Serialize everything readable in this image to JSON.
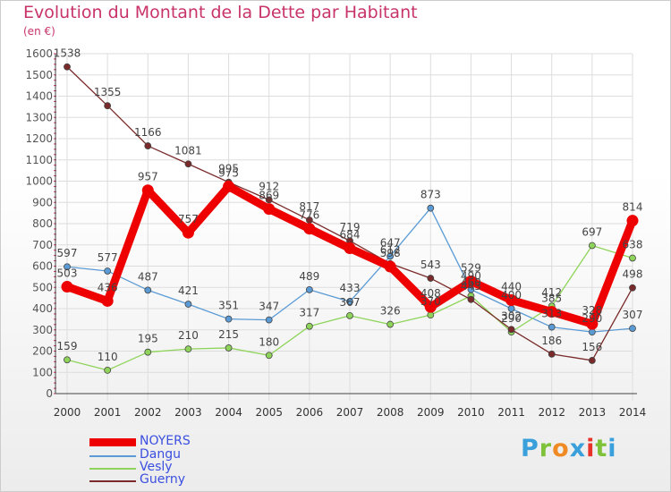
{
  "title": "Evolution du Montant de la Dette par Habitant",
  "unit": "(en €)",
  "logo": {
    "text": "Proxiti",
    "letter_colors": [
      "#3aa0dc",
      "#7ec23a",
      "#f08a24",
      "#3aa0dc",
      "#e8332a",
      "#7ec23a",
      "#3aa0dc"
    ]
  },
  "chart_data": {
    "type": "line",
    "title": "Evolution du Montant de la Dette par Habitant",
    "ylabel": "(en €)",
    "x": [
      2000,
      2001,
      2002,
      2003,
      2004,
      2005,
      2006,
      2007,
      2008,
      2009,
      2010,
      2011,
      2012,
      2013,
      2014
    ],
    "ylim": [
      0,
      1600
    ],
    "yticks": [
      0,
      100,
      200,
      300,
      400,
      500,
      600,
      700,
      800,
      900,
      1000,
      1100,
      1200,
      1300,
      1400,
      1500,
      1600
    ],
    "grid": true,
    "legend_position": "bottom-left",
    "series": [
      {
        "name": "NOYERS",
        "color": "#ee0000",
        "values": [
          503,
          436,
          957,
          757,
          975,
          869,
          776,
          684,
          598,
          408,
          529,
          440,
          385,
          328,
          814
        ]
      },
      {
        "name": "Dangu",
        "color": "#5b9bd5",
        "values": [
          597,
          577,
          487,
          421,
          351,
          347,
          489,
          433,
          647,
          873,
          490,
          400,
          313,
          290,
          307
        ]
      },
      {
        "name": "Vesly",
        "color": "#8fd45a",
        "values": [
          159,
          110,
          195,
          210,
          215,
          180,
          317,
          367,
          326,
          370,
          460,
          290,
          412,
          697,
          638
        ]
      },
      {
        "name": "Guerny",
        "color": "#7a2a2a",
        "values": [
          1538,
          1355,
          1166,
          1081,
          995,
          912,
          817,
          719,
          612,
          543,
          443,
          302,
          186,
          156,
          498
        ]
      }
    ]
  }
}
